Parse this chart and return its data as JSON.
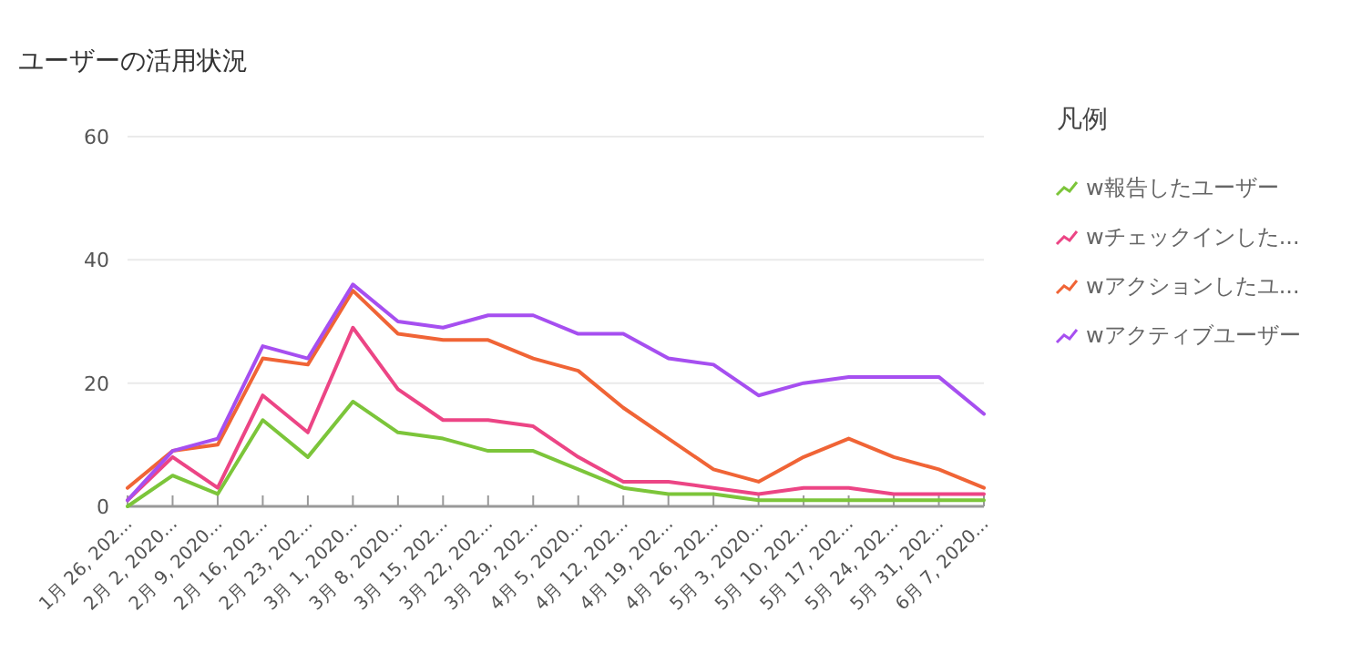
{
  "chart_data": {
    "type": "line",
    "title": "ユーザーの活用状況",
    "legend_title": "凡例",
    "legend": "right",
    "grid": "y",
    "ylim": [
      0,
      60
    ],
    "yticks": [
      0,
      20,
      40,
      60
    ],
    "categories": [
      "1月 26, 202...",
      "2月 2, 2020...",
      "2月 9, 2020...",
      "2月 16, 202...",
      "2月 23, 202...",
      "3月 1, 2020...",
      "3月 8, 2020...",
      "3月 15, 202...",
      "3月 22, 202...",
      "3月 29, 202...",
      "4月 5, 2020...",
      "4月 12, 202...",
      "4月 19, 202...",
      "4月 26, 202...",
      "5月 3, 2020...",
      "5月 10, 202...",
      "5月 17, 202...",
      "5月 24, 202...",
      "5月 31, 202...",
      "6月 7, 2020..."
    ],
    "series": [
      {
        "name": "w報告したユーザー",
        "color": "#7cc53a",
        "values": [
          0,
          5,
          2,
          14,
          8,
          17,
          12,
          11,
          9,
          9,
          6,
          3,
          2,
          2,
          1,
          1,
          1,
          1,
          1,
          1
        ]
      },
      {
        "name": "wチェックインした...",
        "color": "#ec4585",
        "values": [
          1,
          8,
          3,
          18,
          12,
          29,
          19,
          14,
          14,
          13,
          8,
          4,
          4,
          3,
          2,
          3,
          3,
          2,
          2,
          2
        ]
      },
      {
        "name": "wアクションしたユ...",
        "color": "#f06436",
        "values": [
          3,
          9,
          10,
          24,
          23,
          35,
          28,
          27,
          27,
          24,
          22,
          16,
          11,
          6,
          4,
          8,
          11,
          8,
          6,
          3
        ]
      },
      {
        "name": "wアクティブユーザー",
        "color": "#a64ff0",
        "values": [
          1,
          9,
          11,
          26,
          24,
          36,
          30,
          29,
          31,
          31,
          28,
          28,
          24,
          23,
          18,
          20,
          21,
          21,
          21,
          15
        ]
      }
    ]
  }
}
